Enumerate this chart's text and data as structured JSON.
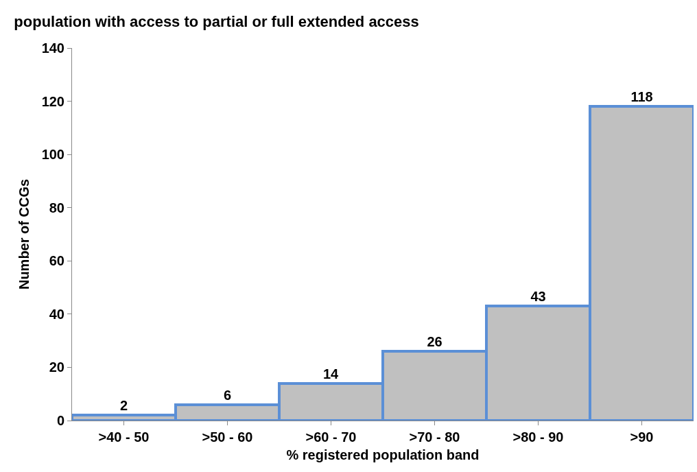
{
  "chart_data": {
    "type": "bar",
    "title": "population with access to partial or full extended access",
    "xlabel": "% registered population band",
    "ylabel": "Number of CCGs",
    "categories": [
      ">40 - 50",
      ">50 - 60",
      ">60 - 70",
      ">70 - 80",
      ">80 - 90",
      ">90"
    ],
    "values": [
      2,
      6,
      14,
      26,
      43,
      118
    ],
    "color": "#c0c0c0",
    "ylim": [
      0,
      140
    ],
    "yticks": [
      0,
      20,
      40,
      60,
      80,
      100,
      120,
      140
    ],
    "grid": false,
    "data_labels": true
  }
}
